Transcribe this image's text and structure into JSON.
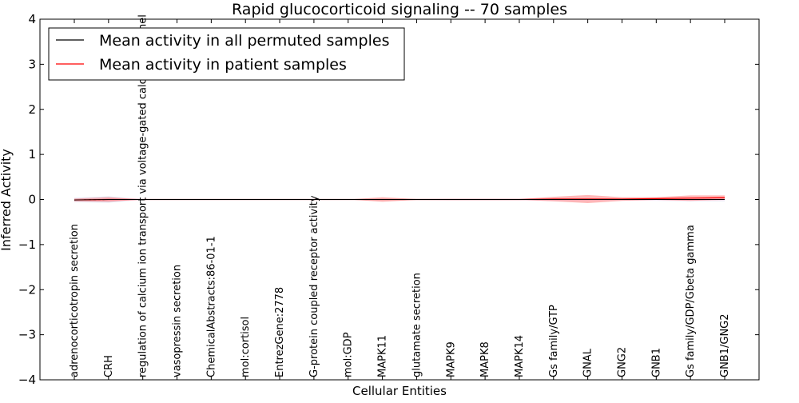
{
  "chart_data": {
    "type": "line",
    "title": "Rapid glucocorticoid signaling -- 70 samples",
    "xlabel": "Cellular Entities",
    "ylabel": "Inferred Activity",
    "ylim": [
      -4,
      4
    ],
    "y_ticks": [
      4,
      3,
      2,
      1,
      0,
      -1,
      -2,
      -3,
      -4
    ],
    "y_tick_labels": [
      "4",
      "3",
      "2",
      "1",
      "0",
      "−1",
      "−2",
      "−3",
      "−4"
    ],
    "grid": false,
    "legend_position": "top-left",
    "categories": [
      "adrenocorticotropin secretion",
      "CRH",
      "regulation of calcium ion transport via voltage-gated calcium channel",
      "vasopressin secretion",
      "ChemicalAbstracts:86-01-1",
      "mol:cortisol",
      "EntrezGene:2778",
      "G-protein coupled receptor activity",
      "mol:GDP",
      "MAPK11",
      "glutamate secretion",
      "MAPK9",
      "MAPK8",
      "MAPK14",
      "Gs family/GTP",
      "GNAL",
      "GNG2",
      "GNB1",
      "Gs family/GDP/Gbeta gamma",
      "GNB1/GNG2"
    ],
    "series": [
      {
        "name": "Mean activity in all permuted samples",
        "color": "#000000",
        "values": [
          -0.01,
          0.0,
          0.0,
          0.0,
          0.0,
          0.0,
          0.0,
          0.0,
          0.0,
          0.0,
          0.0,
          0.0,
          0.0,
          0.0,
          0.0,
          0.0,
          0.0,
          0.0,
          0.0,
          0.0
        ],
        "spread": [
          0.05,
          0.07,
          0.01,
          0.01,
          0.01,
          0.01,
          0.01,
          0.01,
          0.01,
          0.01,
          0.01,
          0.02,
          0.02,
          0.02,
          0.03,
          0.03,
          0.02,
          0.03,
          0.04,
          0.04
        ]
      },
      {
        "name": "Mean activity in patient samples",
        "color": "#ff0000",
        "values": [
          -0.01,
          0.0,
          0.0,
          0.0,
          0.0,
          0.0,
          0.0,
          0.0,
          0.0,
          0.0,
          0.0,
          0.0,
          0.0,
          0.0,
          0.01,
          0.01,
          0.01,
          0.02,
          0.03,
          0.04
        ],
        "spread": [
          0.03,
          0.05,
          0.0,
          0.0,
          0.0,
          0.0,
          0.0,
          0.0,
          0.0,
          0.05,
          0.01,
          0.01,
          0.01,
          0.01,
          0.05,
          0.09,
          0.04,
          0.03,
          0.06,
          0.05
        ]
      }
    ]
  }
}
